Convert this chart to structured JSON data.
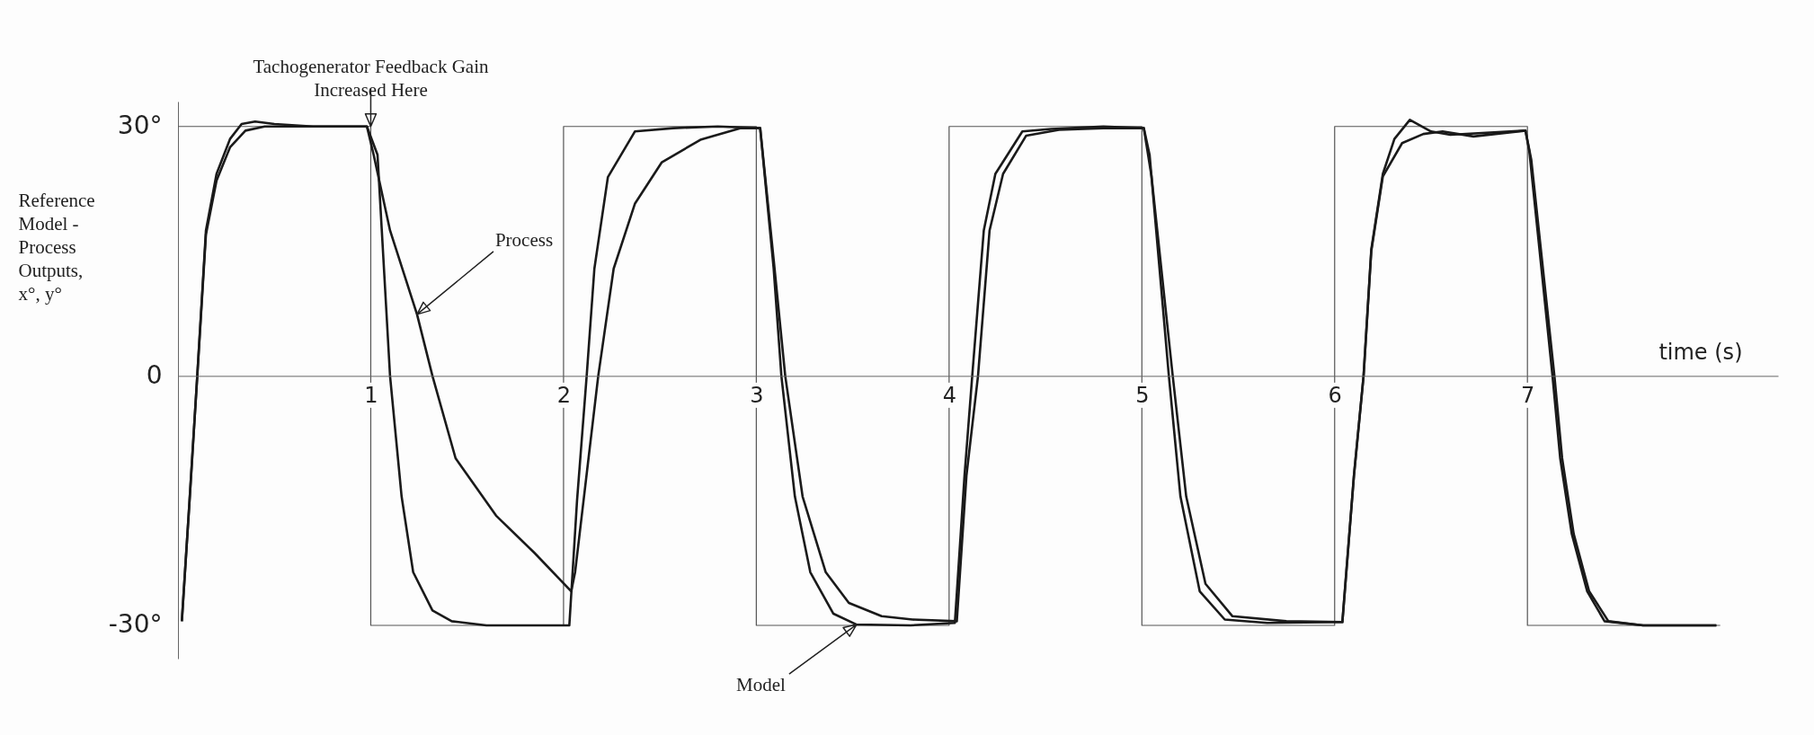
{
  "chart_data": {
    "type": "line",
    "xlabel": "time (s)",
    "ylabel": "Reference Model - Process Outputs, x°, y°",
    "xlim": [
      0,
      8.3
    ],
    "ylim": [
      -34,
      33
    ],
    "xticks": [
      1,
      2,
      3,
      4,
      5,
      6,
      7
    ],
    "yticks": [
      {
        "value": 30,
        "label": "30°"
      },
      0,
      {
        "value": -30,
        "label": "-30°"
      }
    ],
    "annotations": [
      {
        "text": "Tachogenerator Feedback Gain Increased Here",
        "x": 1,
        "y": 30
      },
      {
        "text": "Process",
        "x": 1.24,
        "y": 7.4
      },
      {
        "text": "Model",
        "x": 3.52,
        "y": -29.9
      }
    ],
    "series": [
      {
        "color": "#555555",
        "x": [
          0,
          1,
          1,
          2,
          2,
          3,
          3,
          4,
          4,
          5,
          5,
          6,
          6,
          7,
          7,
          8
        ],
        "values": [
          30,
          30,
          -30,
          -30,
          30,
          30,
          -30,
          -30,
          30,
          30,
          -30,
          -30,
          30,
          30,
          -30,
          -30
        ]
      },
      {
        "color": "#1a1a1a",
        "x": [
          0.02,
          0.06,
          0.1,
          0.145,
          0.2,
          0.27,
          0.33,
          0.4,
          0.5,
          0.7,
          0.98,
          1.035,
          1.1,
          1.16,
          1.22,
          1.32,
          1.42,
          1.6,
          2.03,
          2.07,
          2.12,
          2.16,
          2.23,
          2.37,
          2.57,
          2.8,
          3.02,
          3.09,
          3.13,
          3.2,
          3.28,
          3.4,
          3.52,
          3.8,
          4.03,
          4.08,
          4.12,
          4.18,
          4.24,
          4.38,
          4.53,
          4.8,
          5.01,
          5.04,
          5.14,
          5.2,
          5.3,
          5.43,
          5.65,
          6.04,
          6.1,
          6.15,
          6.19,
          6.25,
          6.31,
          6.39,
          6.5,
          6.6,
          6.99,
          7.01,
          7.13,
          7.17,
          7.23,
          7.31,
          7.4,
          7.6,
          7.98
        ],
        "values": [
          -29.5,
          -15,
          0,
          17.5,
          24.3,
          28.5,
          30.3,
          30.6,
          30.3,
          30,
          30,
          26.6,
          0,
          -14.5,
          -23.6,
          -28.2,
          -29.5,
          -30,
          -30,
          -15,
          0,
          12.9,
          23.9,
          29.4,
          29.8,
          30,
          29.8,
          12.9,
          0,
          -14.5,
          -23.6,
          -28.6,
          -29.9,
          -30,
          -29.7,
          -12,
          0,
          17.5,
          24.3,
          29.4,
          29.7,
          30,
          29.8,
          26.6,
          0,
          -14.5,
          -25.9,
          -29.3,
          -29.7,
          -29.6,
          -12,
          0,
          15.2,
          24.3,
          28.5,
          30.8,
          29.4,
          29,
          29.5,
          27,
          0,
          -9.9,
          -19,
          -25.9,
          -29.5,
          -30,
          -30
        ]
      },
      {
        "color": "#1a1a1a",
        "x": [
          0.02,
          0.06,
          0.1,
          0.145,
          0.2,
          0.27,
          0.35,
          0.45,
          0.6,
          0.98,
          1.015,
          1.1,
          1.24,
          1.32,
          1.44,
          1.65,
          1.85,
          2.04,
          2.06,
          2.18,
          2.26,
          2.37,
          2.51,
          2.71,
          2.92,
          3.02,
          3.09,
          3.15,
          3.24,
          3.36,
          3.48,
          3.65,
          3.81,
          4.04,
          4.09,
          4.15,
          4.21,
          4.28,
          4.4,
          4.57,
          4.8,
          5.01,
          5.05,
          5.16,
          5.23,
          5.33,
          5.47,
          5.75,
          6.04,
          6.1,
          6.15,
          6.19,
          6.25,
          6.35,
          6.46,
          6.56,
          6.72,
          6.99,
          7.02,
          7.14,
          7.18,
          7.24,
          7.32,
          7.42,
          7.6,
          7.98
        ],
        "values": [
          -29.5,
          -15,
          0,
          17,
          23.5,
          27.5,
          29.5,
          30,
          30,
          30,
          26.6,
          17.5,
          7.4,
          0,
          -9.9,
          -16.8,
          -21.3,
          -25.9,
          -23.6,
          0,
          12.9,
          20.7,
          25.7,
          28.4,
          29.8,
          29.8,
          14,
          0,
          -14.5,
          -23.6,
          -27.3,
          -28.9,
          -29.3,
          -29.5,
          -12,
          0,
          17.5,
          24.3,
          28.9,
          29.6,
          29.8,
          29.8,
          24,
          0,
          -14.5,
          -25,
          -28.9,
          -29.5,
          -29.6,
          -12,
          0,
          15,
          24,
          28,
          29.1,
          29.4,
          28.8,
          29.5,
          26,
          0,
          -9.9,
          -19,
          -25.9,
          -29.5,
          -30,
          -30
        ]
      }
    ]
  }
}
